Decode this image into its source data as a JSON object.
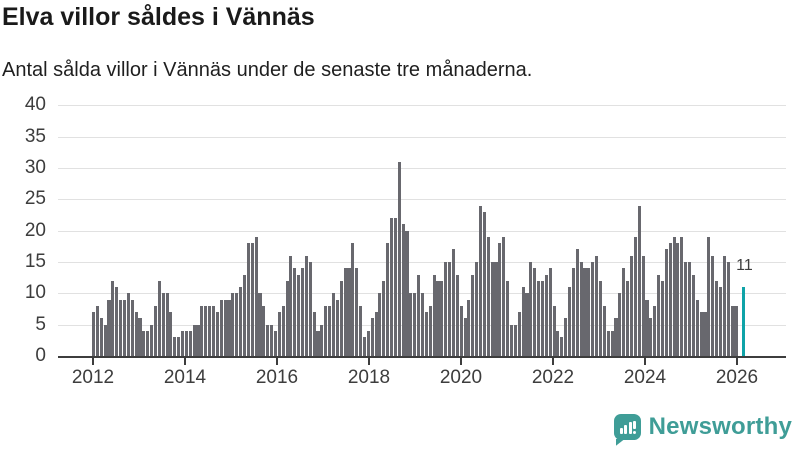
{
  "header": {
    "title": "Elva villor såldes i Vännäs",
    "subtitle": "Antal sålda villor i Vännäs under de senaste tre månaderna."
  },
  "branding": {
    "name": "Newsworthy",
    "icon": "bar-chart-speech-bubble-icon",
    "color": "#3f9d97"
  },
  "chart_data": {
    "type": "bar",
    "title": "Elva villor såldes i Vännäs",
    "subtitle": "Antal sålda villor i Vännäs under de senaste tre månaderna.",
    "x_tick_labels": [
      "2012",
      "2014",
      "2016",
      "2018",
      "2020",
      "2022",
      "2024",
      "2026"
    ],
    "yticks": [
      0,
      5,
      10,
      15,
      20,
      25,
      30,
      35,
      40
    ],
    "ylim": [
      0,
      40
    ],
    "grid": "horizontal-only",
    "legend": "none",
    "bar_color": "#68686e",
    "highlight_color": "#0fa3a8",
    "values": [
      7,
      8,
      6,
      5,
      9,
      12,
      11,
      9,
      9,
      10,
      9,
      7,
      6,
      4,
      4,
      5,
      8,
      12,
      10,
      10,
      7,
      3,
      3,
      4,
      4,
      4,
      5,
      5,
      8,
      8,
      8,
      8,
      7,
      9,
      9,
      9,
      10,
      10,
      11,
      13,
      18,
      18,
      19,
      10,
      8,
      5,
      5,
      4,
      7,
      8,
      12,
      16,
      14,
      13,
      14,
      16,
      15,
      7,
      4,
      5,
      8,
      8,
      10,
      9,
      12,
      14,
      14,
      18,
      14,
      8,
      3,
      4,
      6,
      7,
      10,
      12,
      18,
      22,
      22,
      31,
      21,
      20,
      10,
      10,
      13,
      10,
      7,
      8,
      13,
      12,
      12,
      15,
      15,
      17,
      13,
      8,
      6,
      9,
      13,
      15,
      24,
      23,
      19,
      15,
      15,
      18,
      19,
      12,
      5,
      5,
      7,
      11,
      10,
      15,
      14,
      12,
      12,
      13,
      14,
      8,
      4,
      3,
      6,
      11,
      14,
      17,
      15,
      14,
      14,
      15,
      16,
      12,
      8,
      4,
      4,
      6,
      10,
      14,
      12,
      16,
      19,
      24,
      16,
      9,
      6,
      8,
      13,
      12,
      17,
      18,
      19,
      18,
      19,
      15,
      15,
      13,
      9,
      7,
      7,
      19,
      16,
      12,
      11,
      16,
      15,
      8,
      8
    ],
    "highlight": {
      "value": 11,
      "label": "11",
      "position": "rightmost-bar"
    },
    "gap_slots": 1
  }
}
